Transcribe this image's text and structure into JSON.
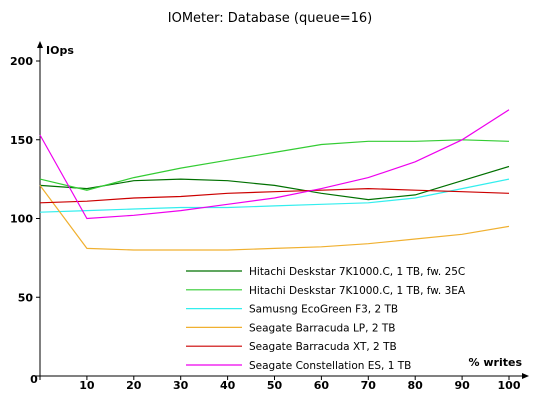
{
  "chart_data": {
    "type": "line",
    "title": "IOMeter: Database (queue=16)",
    "ylabel": "IOps",
    "xlabel": "% writes",
    "xlim": [
      0,
      100
    ],
    "ylim": [
      0,
      200
    ],
    "x_ticks": [
      0,
      10,
      20,
      30,
      40,
      50,
      60,
      70,
      80,
      90,
      100
    ],
    "y_ticks": [
      0,
      50,
      100,
      150,
      200
    ],
    "grid": false,
    "legend_position": "bottom-right",
    "x": [
      0,
      10,
      20,
      30,
      40,
      50,
      60,
      70,
      80,
      90,
      100
    ],
    "series": [
      {
        "name": "Hitachi Deskstar 7K1000.C, 1 TB, fw. 25C",
        "color": "#007000",
        "values": [
          121,
          119,
          124,
          125,
          124,
          121,
          116,
          112,
          115,
          124,
          133
        ]
      },
      {
        "name": "Hitachi Deskstar 7K1000.C, 1 TB, fw. 3EA",
        "color": "#33cc33",
        "values": [
          125,
          118,
          126,
          132,
          137,
          142,
          147,
          149,
          149,
          150,
          149
        ]
      },
      {
        "name": "Samusng EcoGreen F3, 2 TB",
        "color": "#33eeee",
        "values": [
          104,
          105,
          106,
          107,
          107,
          108,
          109,
          110,
          113,
          119,
          125
        ]
      },
      {
        "name": "Seagate Barracuda LP, 2 TB",
        "color": "#f0b030",
        "values": [
          121,
          81,
          80,
          80,
          80,
          81,
          82,
          84,
          87,
          90,
          95
        ]
      },
      {
        "name": "Seagate Barracuda XT, 2 TB",
        "color": "#cc0000",
        "values": [
          110,
          111,
          113,
          114,
          116,
          117,
          118,
          119,
          118,
          117,
          116
        ]
      },
      {
        "name": "Seagate Constellation ES, 1 TB",
        "color": "#ee00ee",
        "values": [
          153,
          100,
          102,
          105,
          109,
          113,
          119,
          126,
          136,
          150,
          169
        ]
      }
    ]
  }
}
